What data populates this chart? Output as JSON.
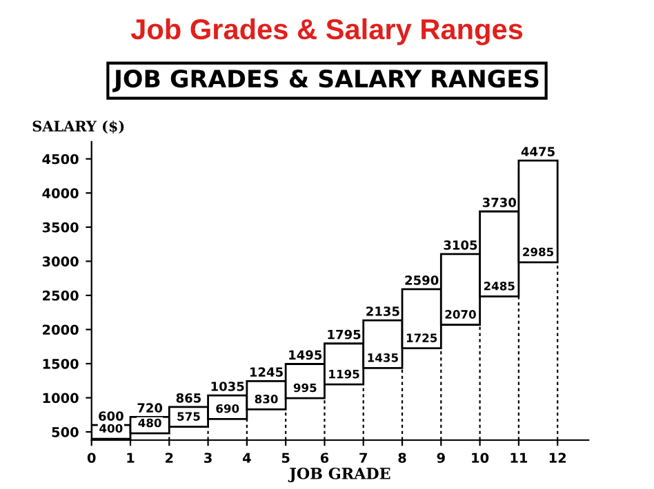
{
  "chart_data": {
    "type": "bar",
    "title": "Job Grades & Salary Ranges",
    "subtitle": "JOB GRADES & SALARY RANGES",
    "xlabel": "JOB GRADE",
    "ylabel": "SALARY ($)",
    "x": [
      0.5,
      1.5,
      2.5,
      3.5,
      4.5,
      5.5,
      6.5,
      7.5,
      8.5,
      9.5,
      10.5,
      11.5
    ],
    "base": [
      400,
      480,
      575,
      690,
      830,
      995,
      1195,
      1435,
      1725,
      2070,
      2485,
      2985
    ],
    "values": [
      200,
      240,
      290,
      345,
      415,
      500,
      600,
      700,
      865,
      1035,
      1245,
      1490
    ],
    "value_labels": [
      "600",
      "720",
      "865",
      "1035",
      "1245",
      "1495",
      "1795",
      "2135",
      "2590",
      "3105",
      "3730",
      "4475"
    ],
    "annotations": [
      {
        "text": "400",
        "x": 0.5,
        "y": 400
      },
      {
        "text": "480",
        "x": 1.5,
        "y": 480
      },
      {
        "text": "575",
        "x": 2.5,
        "y": 575
      },
      {
        "text": "690",
        "x": 3.5,
        "y": 690
      },
      {
        "text": "830",
        "x": 4.5,
        "y": 830
      },
      {
        "text": "995",
        "x": 5.5,
        "y": 995
      },
      {
        "text": "1195",
        "x": 6.5,
        "y": 1195
      },
      {
        "text": "1435",
        "x": 7.5,
        "y": 1435
      },
      {
        "text": "1725",
        "x": 8.5,
        "y": 1725
      },
      {
        "text": "2070",
        "x": 9.5,
        "y": 2070
      },
      {
        "text": "2485",
        "x": 10.5,
        "y": 2485
      },
      {
        "text": "2985",
        "x": 11.5,
        "y": 2985
      }
    ],
    "color": "#ffffff",
    "xlim": [
      0,
      12.8
    ],
    "ylim": [
      380,
      4750
    ],
    "xticks": [
      0,
      1,
      2,
      3,
      4,
      5,
      6,
      7,
      8,
      9,
      10,
      11,
      12
    ],
    "yticks": [
      500,
      1000,
      1500,
      2000,
      2500,
      3000,
      3500,
      4000,
      4500
    ],
    "grid": false,
    "legend": false
  }
}
